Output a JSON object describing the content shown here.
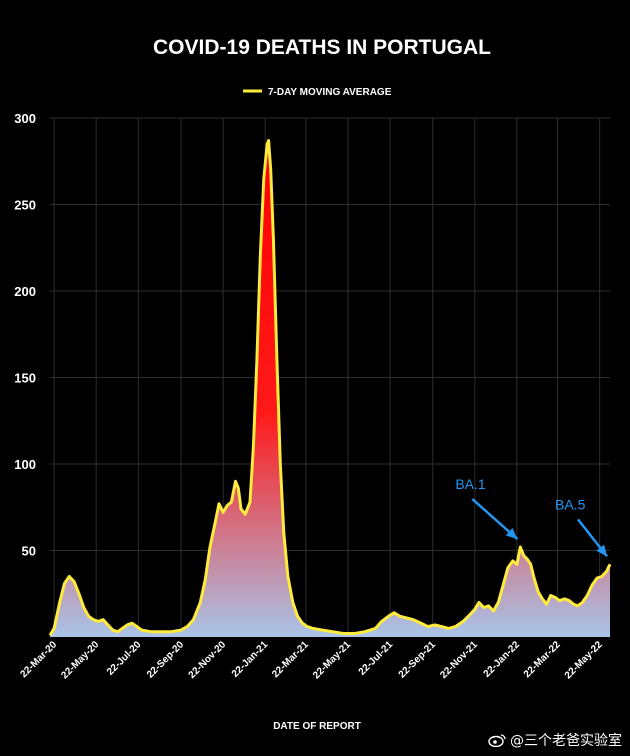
{
  "chart_data": {
    "type": "area",
    "title": "COVID-19 DEATHS IN PORTUGAL",
    "xlabel": "DATE OF REPORT",
    "ylabel": "",
    "ylim": [
      0,
      300
    ],
    "yticks": [
      50,
      100,
      150,
      200,
      250,
      300
    ],
    "grid": true,
    "legend_position": "top-center",
    "series": [
      {
        "name": "7-DAY MOVING AVERAGE",
        "color": "#ffeb3b",
        "points": [
          [
            "2020-03-16",
            1
          ],
          [
            "2020-03-22",
            5
          ],
          [
            "2020-03-30",
            20
          ],
          [
            "2020-04-06",
            31
          ],
          [
            "2020-04-13",
            35
          ],
          [
            "2020-04-20",
            32
          ],
          [
            "2020-04-27",
            25
          ],
          [
            "2020-05-04",
            17
          ],
          [
            "2020-05-11",
            12
          ],
          [
            "2020-05-18",
            10
          ],
          [
            "2020-05-25",
            9
          ],
          [
            "2020-06-01",
            10
          ],
          [
            "2020-06-08",
            7
          ],
          [
            "2020-06-15",
            4
          ],
          [
            "2020-06-22",
            3
          ],
          [
            "2020-06-29",
            5
          ],
          [
            "2020-07-06",
            7
          ],
          [
            "2020-07-13",
            8
          ],
          [
            "2020-07-20",
            6
          ],
          [
            "2020-07-27",
            4
          ],
          [
            "2020-08-10",
            3
          ],
          [
            "2020-08-24",
            3
          ],
          [
            "2020-09-07",
            3
          ],
          [
            "2020-09-22",
            4
          ],
          [
            "2020-10-01",
            6
          ],
          [
            "2020-10-10",
            10
          ],
          [
            "2020-10-20",
            20
          ],
          [
            "2020-10-27",
            33
          ],
          [
            "2020-11-03",
            52
          ],
          [
            "2020-11-10",
            65
          ],
          [
            "2020-11-16",
            77
          ],
          [
            "2020-11-22",
            72
          ],
          [
            "2020-11-28",
            76
          ],
          [
            "2020-12-04",
            78
          ],
          [
            "2020-12-10",
            90
          ],
          [
            "2020-12-14",
            86
          ],
          [
            "2020-12-18",
            74
          ],
          [
            "2020-12-24",
            71
          ],
          [
            "2020-12-31",
            78
          ],
          [
            "2021-01-05",
            110
          ],
          [
            "2021-01-10",
            160
          ],
          [
            "2021-01-15",
            220
          ],
          [
            "2021-01-20",
            265
          ],
          [
            "2021-01-25",
            285
          ],
          [
            "2021-01-27",
            287
          ],
          [
            "2021-01-30",
            270
          ],
          [
            "2021-02-03",
            230
          ],
          [
            "2021-02-08",
            160
          ],
          [
            "2021-02-13",
            100
          ],
          [
            "2021-02-18",
            60
          ],
          [
            "2021-02-24",
            35
          ],
          [
            "2021-03-03",
            20
          ],
          [
            "2021-03-10",
            12
          ],
          [
            "2021-03-17",
            8
          ],
          [
            "2021-03-24",
            6
          ],
          [
            "2021-04-01",
            5
          ],
          [
            "2021-04-15",
            4
          ],
          [
            "2021-05-01",
            3
          ],
          [
            "2021-05-15",
            2
          ],
          [
            "2021-06-01",
            2
          ],
          [
            "2021-06-15",
            3
          ],
          [
            "2021-07-01",
            5
          ],
          [
            "2021-07-10",
            9
          ],
          [
            "2021-07-20",
            12
          ],
          [
            "2021-07-28",
            14
          ],
          [
            "2021-08-05",
            12
          ],
          [
            "2021-08-15",
            11
          ],
          [
            "2021-08-25",
            10
          ],
          [
            "2021-09-05",
            8
          ],
          [
            "2021-09-15",
            6
          ],
          [
            "2021-09-25",
            7
          ],
          [
            "2021-10-05",
            6
          ],
          [
            "2021-10-15",
            5
          ],
          [
            "2021-10-25",
            6
          ],
          [
            "2021-11-05",
            9
          ],
          [
            "2021-11-15",
            13
          ],
          [
            "2021-11-22",
            16
          ],
          [
            "2021-11-28",
            20
          ],
          [
            "2021-12-05",
            17
          ],
          [
            "2021-12-12",
            18
          ],
          [
            "2021-12-19",
            15
          ],
          [
            "2021-12-26",
            20
          ],
          [
            "2022-01-02",
            30
          ],
          [
            "2022-01-09",
            40
          ],
          [
            "2022-01-16",
            44
          ],
          [
            "2022-01-22",
            42
          ],
          [
            "2022-01-27",
            52
          ],
          [
            "2022-02-01",
            47
          ],
          [
            "2022-02-06",
            45
          ],
          [
            "2022-02-11",
            42
          ],
          [
            "2022-02-16",
            34
          ],
          [
            "2022-02-22",
            26
          ],
          [
            "2022-02-28",
            22
          ],
          [
            "2022-03-06",
            19
          ],
          [
            "2022-03-12",
            24
          ],
          [
            "2022-03-18",
            23
          ],
          [
            "2022-03-25",
            21
          ],
          [
            "2022-04-01",
            22
          ],
          [
            "2022-04-08",
            21
          ],
          [
            "2022-04-14",
            19
          ],
          [
            "2022-04-20",
            18
          ],
          [
            "2022-04-27",
            20
          ],
          [
            "2022-05-04",
            24
          ],
          [
            "2022-05-11",
            30
          ],
          [
            "2022-05-18",
            34
          ],
          [
            "2022-05-25",
            35
          ],
          [
            "2022-06-01",
            38
          ],
          [
            "2022-06-06",
            42
          ]
        ]
      }
    ],
    "x_tick_labels": [
      {
        "date": "2020-03-22",
        "label": "22-Mar-20"
      },
      {
        "date": "2020-05-22",
        "label": "22-May-20"
      },
      {
        "date": "2020-07-22",
        "label": "22-Jul-20"
      },
      {
        "date": "2020-09-22",
        "label": "22-Sep-20"
      },
      {
        "date": "2020-11-22",
        "label": "22-Nov-20"
      },
      {
        "date": "2021-01-22",
        "label": "22-Jan-21"
      },
      {
        "date": "2021-03-22",
        "label": "22-Mar-21"
      },
      {
        "date": "2021-05-22",
        "label": "22-May-21"
      },
      {
        "date": "2021-07-22",
        "label": "22-Jul-21"
      },
      {
        "date": "2021-09-22",
        "label": "22-Sep-21"
      },
      {
        "date": "2021-11-22",
        "label": "22-Nov-21"
      },
      {
        "date": "2022-01-22",
        "label": "22-Jan-22"
      },
      {
        "date": "2022-03-22",
        "label": "22-Mar-22"
      },
      {
        "date": "2022-05-22",
        "label": "22-May-22"
      }
    ],
    "annotations": [
      {
        "text": "BA.1",
        "date": "2022-01-27",
        "value": 52,
        "color": "#2196f3"
      },
      {
        "text": "BA.5",
        "date": "2022-06-06",
        "value": 42,
        "color": "#2196f3"
      }
    ]
  },
  "watermark": {
    "text": "@三个老爸实验室",
    "icon": "weibo-logo-icon"
  }
}
